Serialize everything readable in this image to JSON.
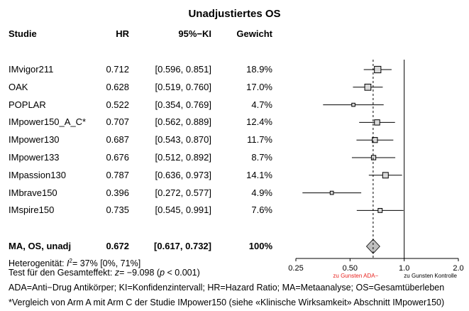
{
  "chart_data": {
    "type": "forest",
    "title": "Unadjustiertes OS",
    "columns": {
      "study": "Studie",
      "hr": "HR",
      "ci": "95%−KI",
      "weight": "Gewicht"
    },
    "studies": [
      {
        "name": "IMvigor211",
        "hr": 0.712,
        "lower": 0.596,
        "upper": 0.851,
        "hr_text": "0.712",
        "ci_text": "[0.596, 0.851]",
        "weight_text": "18.9%",
        "weight": 18.9
      },
      {
        "name": "OAK",
        "hr": 0.628,
        "lower": 0.519,
        "upper": 0.76,
        "hr_text": "0.628",
        "ci_text": "[0.519, 0.760]",
        "weight_text": "17.0%",
        "weight": 17.0
      },
      {
        "name": "POPLAR",
        "hr": 0.522,
        "lower": 0.354,
        "upper": 0.769,
        "hr_text": "0.522",
        "ci_text": "[0.354, 0.769]",
        "weight_text": "4.7%",
        "weight": 4.7
      },
      {
        "name": "IMpower150_A_C*",
        "hr": 0.707,
        "lower": 0.562,
        "upper": 0.889,
        "hr_text": "0.707",
        "ci_text": "[0.562, 0.889]",
        "weight_text": "12.4%",
        "weight": 12.4
      },
      {
        "name": "IMpower130",
        "hr": 0.687,
        "lower": 0.543,
        "upper": 0.87,
        "hr_text": "0.687",
        "ci_text": "[0.543, 0.870]",
        "weight_text": "11.7%",
        "weight": 11.7
      },
      {
        "name": "IMpower133",
        "hr": 0.676,
        "lower": 0.512,
        "upper": 0.892,
        "hr_text": "0.676",
        "ci_text": "[0.512, 0.892]",
        "weight_text": "8.7%",
        "weight": 8.7
      },
      {
        "name": "IMpassion130",
        "hr": 0.787,
        "lower": 0.636,
        "upper": 0.973,
        "hr_text": "0.787",
        "ci_text": "[0.636, 0.973]",
        "weight_text": "14.1%",
        "weight": 14.1
      },
      {
        "name": "IMbrave150",
        "hr": 0.396,
        "lower": 0.272,
        "upper": 0.577,
        "hr_text": "0.396",
        "ci_text": "[0.272, 0.577]",
        "weight_text": "4.9%",
        "weight": 4.9
      },
      {
        "name": "IMspire150",
        "hr": 0.735,
        "lower": 0.545,
        "upper": 0.991,
        "hr_text": "0.735",
        "ci_text": "[0.545, 0.991]",
        "weight_text": "7.6%",
        "weight": 7.6
      }
    ],
    "summary": {
      "name": "MA, OS, unadj",
      "hr": 0.672,
      "lower": 0.617,
      "upper": 0.732,
      "hr_text": "0.672",
      "ci_text": "[0.617, 0.732]",
      "weight_text": "100%"
    },
    "heterogeneity": {
      "prefix": "Heterogenität: ",
      "i2_label": "I",
      "i2_sup": "2",
      "rest": "= 37% [0%, 71%]"
    },
    "overall_test": {
      "prefix": "Test für den Gesamteffekt: ",
      "z_label": "z",
      "z_value": "= −9.098 (",
      "p_label": "p",
      "p_value": " < 0.001)"
    },
    "x_axis": {
      "scale": "log",
      "ticks": [
        0.25,
        0.5,
        1.0,
        2.0
      ],
      "tick_labels": [
        "0.25",
        "0.50",
        "1.0",
        "2.0"
      ],
      "xlim": [
        0.25,
        2.0
      ]
    },
    "favours_left": "zu Gunsten ADA−",
    "favours_right": "zu Gunsten Kontrolle",
    "colors": {
      "favours_left": "#e8231f",
      "box_fill": "#d9d9d9",
      "diamond_fill": "#bfbfbf",
      "line": "#000000"
    }
  },
  "footnotes": {
    "abbreviations": "ADA=Anti−Drug Antikörper; KI=Konfidenzintervall; HR=Hazard Ratio; MA=Metaanalyse; OS=Gesamtüberleben",
    "note": "*Vergleich von Arm A mit Arm C der Studie IMpower150 (siehe «Klinische Wirksamkeit» Abschnitt IMpower150)"
  }
}
